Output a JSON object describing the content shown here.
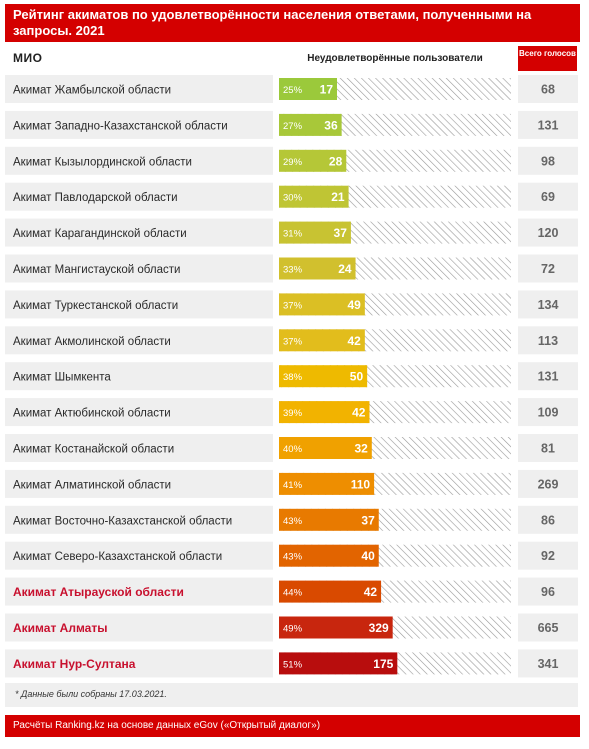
{
  "title": "Рейтинг акиматов по удовлетворённости населения ответами, полученными на запросы. 2021",
  "col_mio": "МИО",
  "col_bar": "Неудовлетворённые пользователи",
  "col_total": "Всего голосов",
  "note": "* Данные были собраны 17.03.2021.",
  "source": "Расчёты Ranking.kz на основе данных eGov («Открытый диалог»)",
  "colors": {
    "header": "#d40000",
    "highlight_text": "#c8102e",
    "row_bg": "#efefef",
    "hatch": "#9a9a9a"
  },
  "chart_data": {
    "type": "bar",
    "orientation": "horizontal",
    "categories": [
      "Акимат Жамбылской области",
      "Акимат Западно-Казахстанской области",
      "Акимат Кызылординской области",
      "Акимат Павлодарской области",
      "Акимат Карагандинской области",
      "Акимат Мангистауской области",
      "Акимат Туркестанской области",
      "Акимат Акмолинской области",
      "Акимат Шымкента",
      "Акимат Актюбинской области",
      "Акимат Костанайской области",
      "Акимат Алматинской области",
      "Акимат Восточно-Казахстанской области",
      "Акимат Северо-Казахстанской области",
      "Акимат Атырауской  области",
      "Акимат Алматы",
      "Акимат Нур-Султана"
    ],
    "highlighted": [
      false,
      false,
      false,
      false,
      false,
      false,
      false,
      false,
      false,
      false,
      false,
      false,
      false,
      false,
      true,
      true,
      true
    ],
    "percent_labels": [
      "25%",
      "27%",
      "29%",
      "30%",
      "31%",
      "33%",
      "37%",
      "37%",
      "38%",
      "39%",
      "40%",
      "41%",
      "43%",
      "43%",
      "44%",
      "49%",
      "51%"
    ],
    "percent_values": [
      25,
      27,
      29,
      30,
      31,
      33,
      37,
      37,
      38,
      39,
      40,
      41,
      43,
      43,
      44,
      49,
      51
    ],
    "unsatisfied": [
      17,
      36,
      28,
      21,
      37,
      24,
      49,
      42,
      50,
      42,
      32,
      110,
      37,
      40,
      42,
      329,
      175
    ],
    "total_votes": [
      68,
      131,
      98,
      69,
      120,
      72,
      134,
      113,
      131,
      109,
      81,
      269,
      86,
      92,
      96,
      665,
      341
    ],
    "bar_colors": [
      "#9bc93b",
      "#a8c839",
      "#b5c737",
      "#bfc534",
      "#c8c332",
      "#d1c02e",
      "#dbbf24",
      "#e2bd1c",
      "#eeba00",
      "#f2b300",
      "#f0a100",
      "#ee8e00",
      "#e87a00",
      "#e26400",
      "#d94a00",
      "#c8260e",
      "#b80d0d"
    ],
    "xlim": [
      0,
      100
    ]
  }
}
